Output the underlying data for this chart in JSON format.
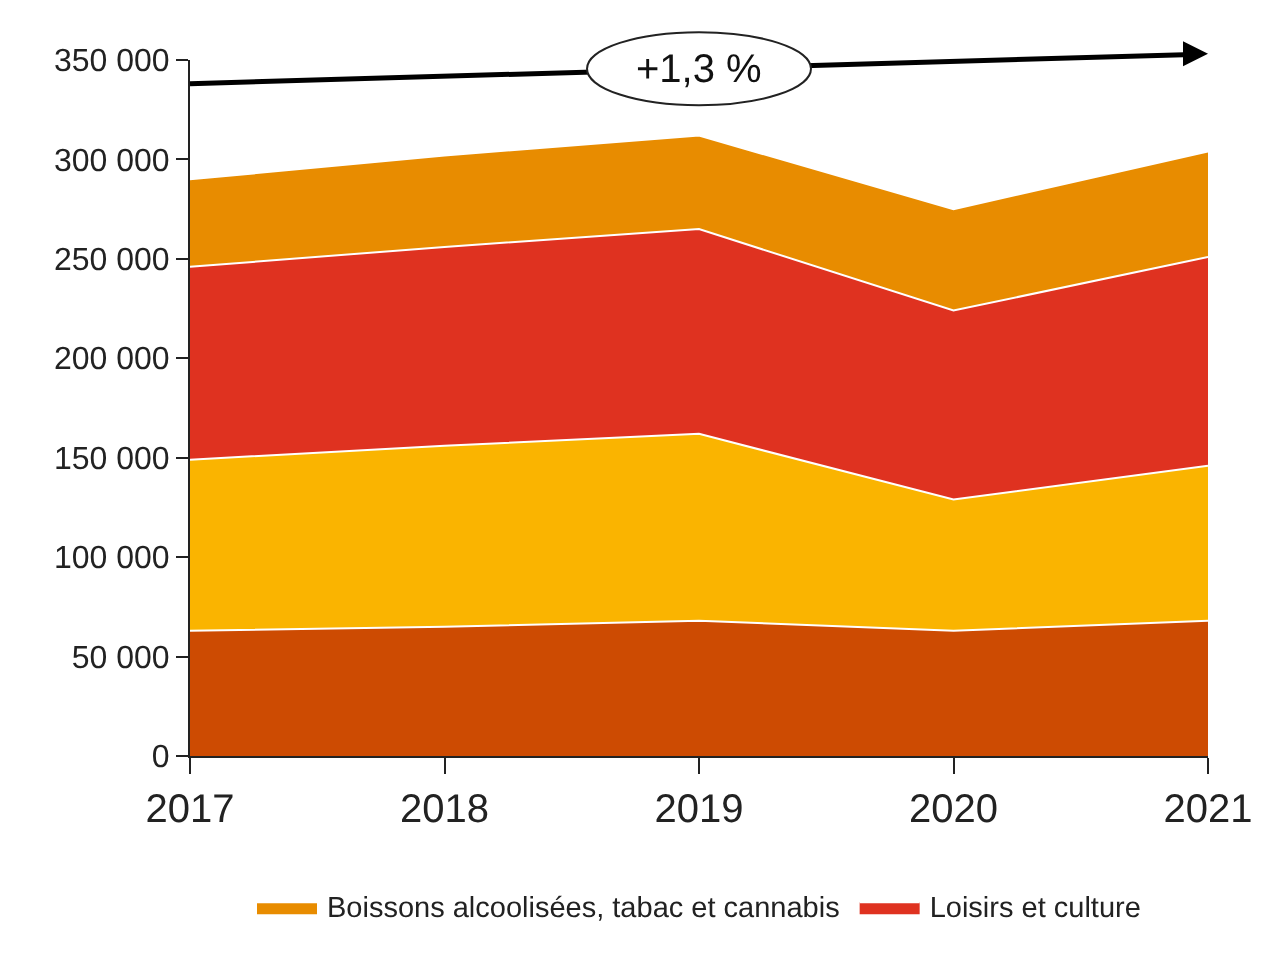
{
  "chart_data": {
    "type": "area",
    "stacked": true,
    "x": [
      2017,
      2018,
      2019,
      2020,
      2021
    ],
    "xlim": [
      2017,
      2021
    ],
    "xticks": [
      2017,
      2018,
      2019,
      2020,
      2021
    ],
    "ylim": [
      0,
      350000
    ],
    "yticks": [
      0,
      {
        "value": 50000,
        "label": "50 000"
      },
      {
        "value": 100000,
        "label": "100 000"
      },
      {
        "value": 150000,
        "label": "150 000"
      },
      {
        "value": 200000,
        "label": "200 000"
      },
      {
        "value": 250000,
        "label": "250 000"
      },
      {
        "value": 300000,
        "label": "300 000"
      },
      {
        "value": 350000,
        "label": "350 000"
      }
    ],
    "series": [
      {
        "color": "#cd4b02",
        "values": [
          63000,
          65000,
          68000,
          63000,
          68000
        ]
      },
      {
        "color": "#fab400",
        "values": [
          86000,
          91000,
          94000,
          66000,
          78000
        ]
      },
      {
        "name": "Loisirs et culture",
        "color": "#df3220",
        "values": [
          97000,
          100000,
          103000,
          95000,
          105000
        ]
      },
      {
        "name": "Boissons alcoolisées, tabac et cannabis",
        "color": "#e88c00",
        "values": [
          44000,
          46000,
          47000,
          51000,
          53000
        ]
      }
    ],
    "annotations": [
      "+1,3 %"
    ],
    "grid": false,
    "legend": "bottom"
  }
}
